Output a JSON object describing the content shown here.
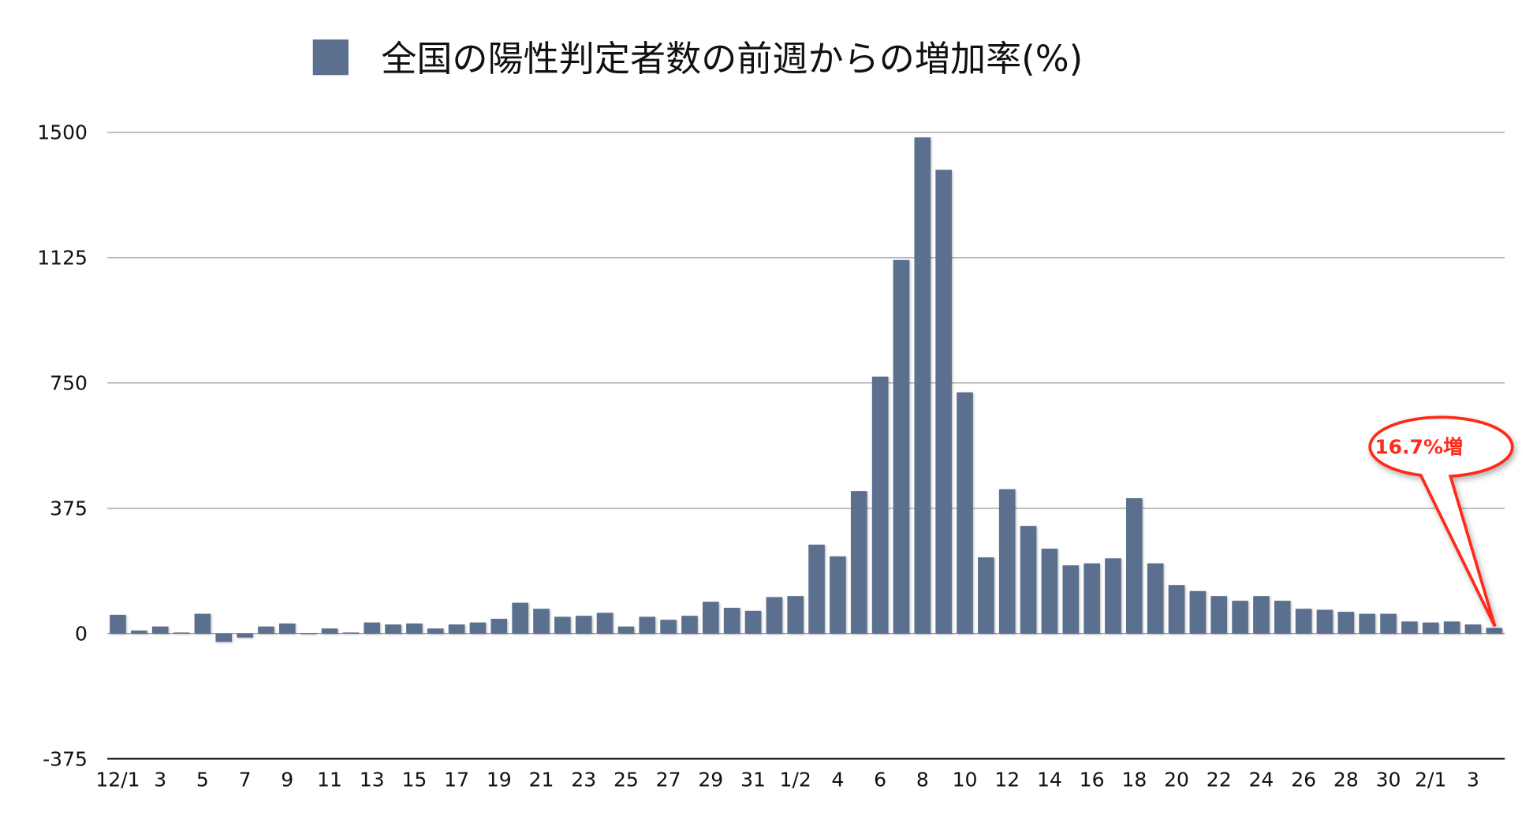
{
  "chart_data": {
    "type": "bar",
    "title": "全国の陽性判定者数の前週からの増加率(%)",
    "legend": {
      "label": "全国の陽性判定者数の前週からの増加率(%)",
      "placement": "top"
    },
    "xlabel": "",
    "ylabel": "",
    "ylim": [
      -375,
      1500
    ],
    "yticks": [
      "1500",
      "1125",
      "750",
      "375",
      "0",
      "-375"
    ],
    "ytick_values": [
      1500,
      1125,
      750,
      375,
      0,
      -375
    ],
    "grid": true,
    "bar_color": "#5b6f8e",
    "categories": [
      "12/1",
      "12/2",
      "12/3",
      "12/4",
      "12/5",
      "12/6",
      "12/7",
      "12/8",
      "12/9",
      "12/10",
      "12/11",
      "12/12",
      "12/13",
      "12/14",
      "12/15",
      "12/16",
      "12/17",
      "12/18",
      "12/19",
      "12/20",
      "12/21",
      "12/22",
      "12/23",
      "12/24",
      "12/25",
      "12/26",
      "12/27",
      "12/28",
      "12/29",
      "12/30",
      "12/31",
      "1/1",
      "1/2",
      "1/3",
      "1/4",
      "1/5",
      "1/6",
      "1/7",
      "1/8",
      "1/9",
      "1/10",
      "1/11",
      "1/12",
      "1/13",
      "1/14",
      "1/15",
      "1/16",
      "1/17",
      "1/18",
      "1/19",
      "1/20",
      "1/21",
      "1/22",
      "1/23",
      "1/24",
      "1/25",
      "1/26",
      "1/27",
      "1/28",
      "1/29",
      "1/30",
      "1/31",
      "2/1",
      "2/2",
      "2/3",
      "2/4"
    ],
    "xtick_labels": [
      {
        "index": 0,
        "label": "12/1"
      },
      {
        "index": 2,
        "label": "3"
      },
      {
        "index": 4,
        "label": "5"
      },
      {
        "index": 6,
        "label": "7"
      },
      {
        "index": 8,
        "label": "9"
      },
      {
        "index": 10,
        "label": "11"
      },
      {
        "index": 12,
        "label": "13"
      },
      {
        "index": 14,
        "label": "15"
      },
      {
        "index": 16,
        "label": "17"
      },
      {
        "index": 18,
        "label": "19"
      },
      {
        "index": 20,
        "label": "21"
      },
      {
        "index": 22,
        "label": "23"
      },
      {
        "index": 24,
        "label": "25"
      },
      {
        "index": 26,
        "label": "27"
      },
      {
        "index": 28,
        "label": "29"
      },
      {
        "index": 30,
        "label": "31"
      },
      {
        "index": 32,
        "label": "1/2"
      },
      {
        "index": 34,
        "label": "4"
      },
      {
        "index": 36,
        "label": "6"
      },
      {
        "index": 38,
        "label": "8"
      },
      {
        "index": 40,
        "label": "10"
      },
      {
        "index": 42,
        "label": "12"
      },
      {
        "index": 44,
        "label": "14"
      },
      {
        "index": 46,
        "label": "16"
      },
      {
        "index": 48,
        "label": "18"
      },
      {
        "index": 50,
        "label": "20"
      },
      {
        "index": 52,
        "label": "22"
      },
      {
        "index": 54,
        "label": "24"
      },
      {
        "index": 56,
        "label": "26"
      },
      {
        "index": 58,
        "label": "28"
      },
      {
        "index": 60,
        "label": "30"
      },
      {
        "index": 62,
        "label": "2/1"
      },
      {
        "index": 64,
        "label": "3"
      }
    ],
    "values": [
      56,
      9,
      21,
      3,
      59,
      -25,
      -12,
      21,
      30,
      1,
      15,
      3,
      33,
      27,
      30,
      15,
      27,
      33,
      44,
      92,
      74,
      50,
      53,
      62,
      21,
      50,
      41,
      53,
      95,
      77,
      68,
      109,
      112,
      266,
      231,
      426,
      769,
      1118,
      1485,
      1388,
      722,
      228,
      432,
      322,
      254,
      204,
      210,
      225,
      405,
      210,
      145,
      127,
      112,
      98,
      112,
      98,
      74,
      71,
      65,
      59,
      59,
      36,
      33,
      36,
      27,
      16.7
    ],
    "annotation": {
      "text": "16.7%増",
      "target_index": 65,
      "color": "#ff2a1a"
    }
  }
}
